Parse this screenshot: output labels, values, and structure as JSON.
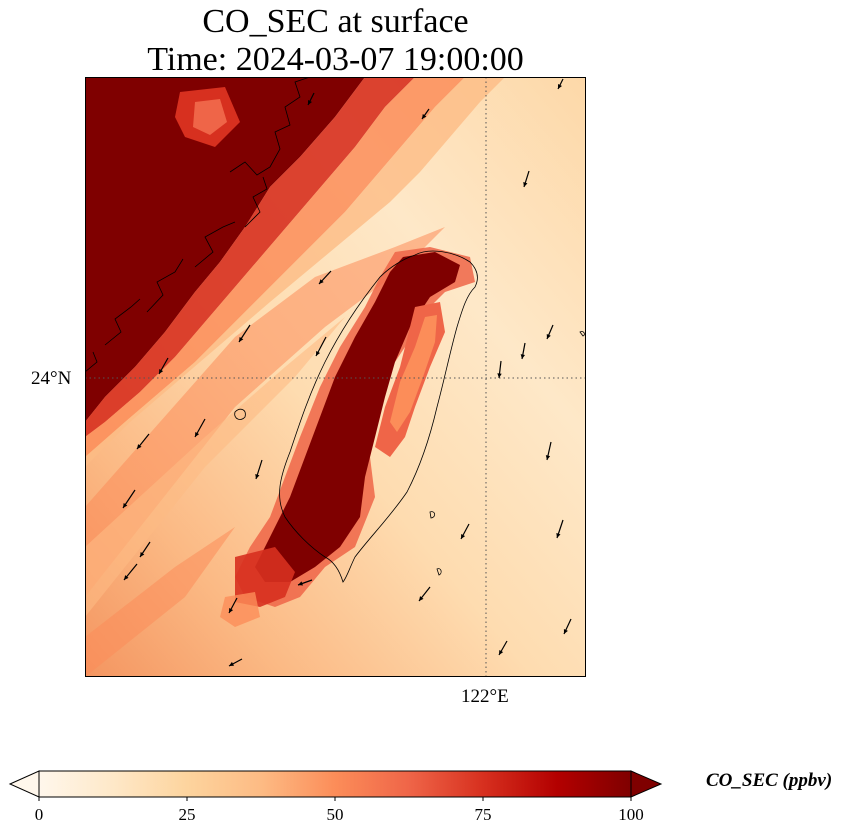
{
  "title": {
    "line1": "CO_SEC at surface",
    "line2": "Time: 2024-03-07 19:00:00"
  },
  "map": {
    "variable": "CO_SEC",
    "level": "surface",
    "region": "Taiwan",
    "gridlines": "dotted",
    "lat_label": "24°N",
    "lon_label": "122°E",
    "wind_vectors": "shown",
    "coastline": "shown"
  },
  "colorbar": {
    "label": "CO_SEC (ppbv)",
    "colormap": "OrRd",
    "min": 0,
    "max": 100,
    "extend": "both",
    "ticks": [
      "0",
      "25",
      "50",
      "75",
      "100"
    ],
    "colors": [
      "#fff7ec",
      "#fee8c8",
      "#fdd49e",
      "#fdbb84",
      "#fc8d59",
      "#ef6548",
      "#d7301f",
      "#b30000",
      "#7f0000"
    ]
  }
}
